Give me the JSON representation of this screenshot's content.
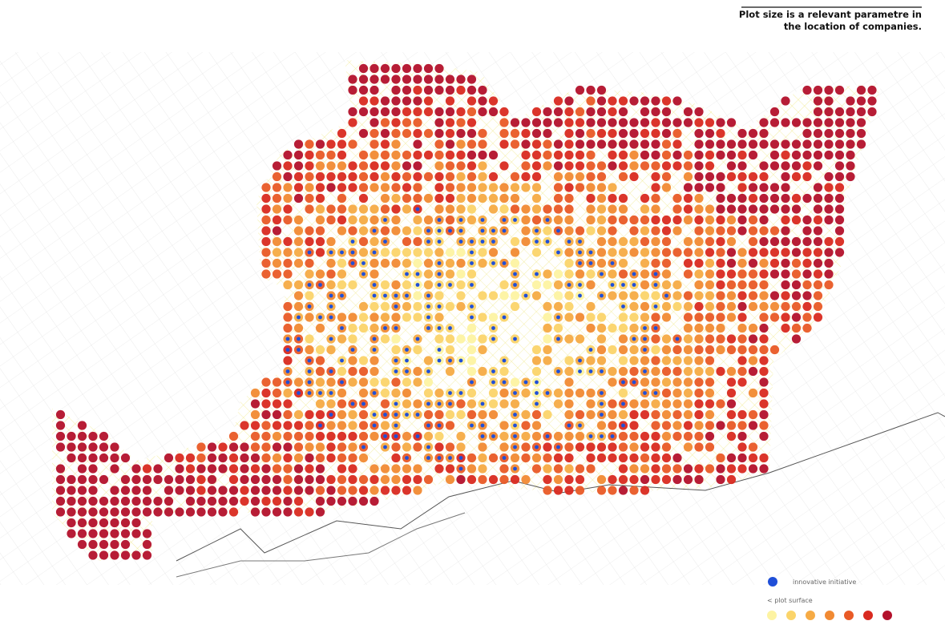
{
  "header": {
    "title_lines": [
      "Plot size is a relevant parametre in",
      "the location of  companies."
    ]
  },
  "legend": {
    "innovative": {
      "label": "innovative initiative",
      "color": "#1f4fd8"
    },
    "plot_surface": {
      "label": "< plot surface",
      "colors": [
        "#fdf3a2",
        "#fbd46a",
        "#f6ab45",
        "#f18a33",
        "#e95a26",
        "#d92a20",
        "#b3112b"
      ]
    }
  }
}
